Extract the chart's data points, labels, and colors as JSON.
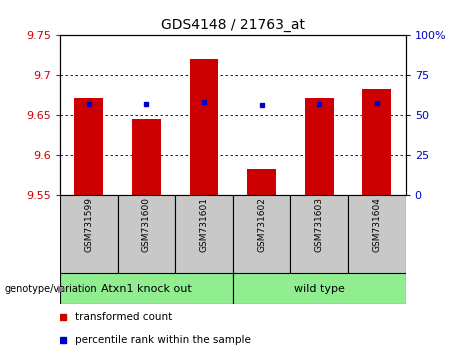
{
  "title": "GDS4148 / 21763_at",
  "samples": [
    "GSM731599",
    "GSM731600",
    "GSM731601",
    "GSM731602",
    "GSM731603",
    "GSM731604"
  ],
  "red_values": [
    9.671,
    9.645,
    9.72,
    9.582,
    9.672,
    9.683
  ],
  "blue_values": [
    9.664,
    9.664,
    9.666,
    9.663,
    9.664,
    9.665
  ],
  "y_min": 9.55,
  "y_max": 9.75,
  "y_ticks": [
    9.55,
    9.6,
    9.65,
    9.7,
    9.75
  ],
  "y_tick_labels": [
    "9.55",
    "9.6",
    "9.65",
    "9.7",
    "9.75"
  ],
  "y2_ticks": [
    0,
    25,
    50,
    75,
    100
  ],
  "y2_tick_labels": [
    "0",
    "25",
    "50",
    "75",
    "100%"
  ],
  "groups": [
    {
      "label": "Atxn1 knock out",
      "indices": [
        0,
        1,
        2
      ]
    },
    {
      "label": "wild type",
      "indices": [
        3,
        4,
        5
      ]
    }
  ],
  "group_label_prefix": "genotype/variation",
  "legend_red": "transformed count",
  "legend_blue": "percentile rank within the sample",
  "bar_color": "#CC0000",
  "dot_color": "#0000CC",
  "base_value": 9.55,
  "bar_width": 0.5,
  "bg_color": "#FFFFFF",
  "tick_label_color_left": "#CC0000",
  "tick_label_color_right": "#0000CC",
  "gray_color": "#C8C8C8",
  "green_color": "#90EE90"
}
